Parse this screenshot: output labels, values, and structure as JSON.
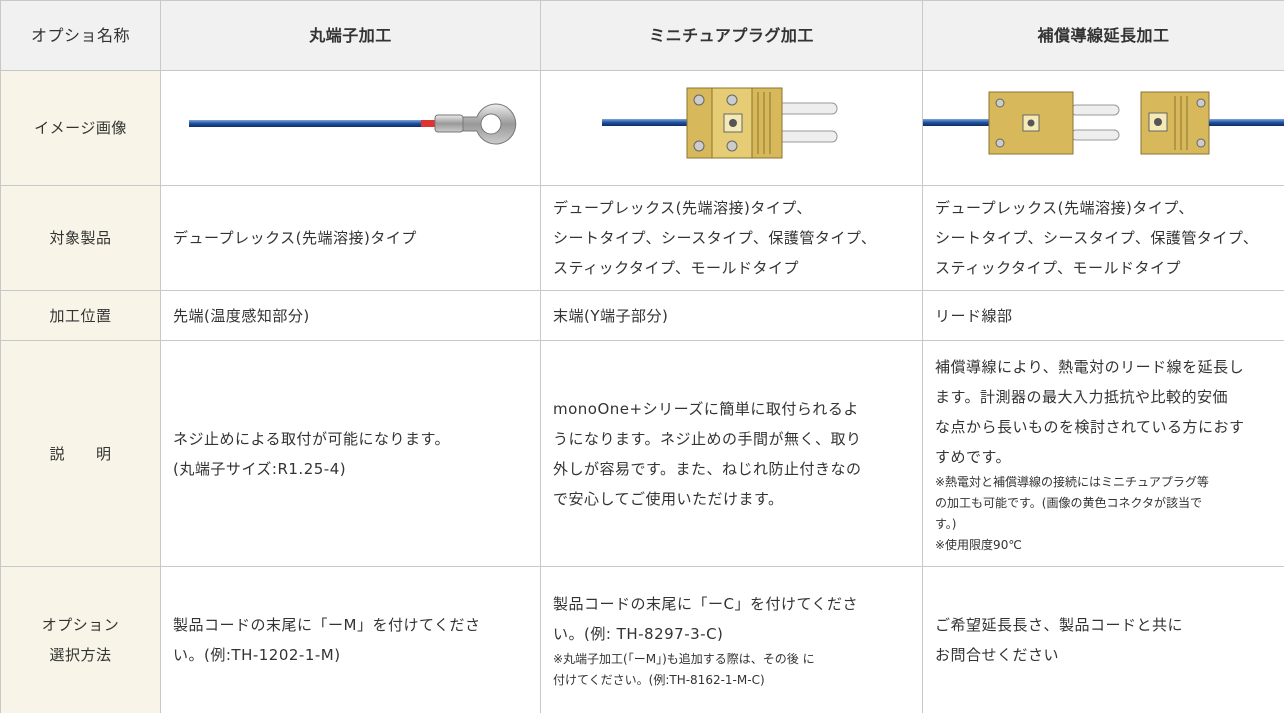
{
  "table": {
    "header": [
      "オプショ名称",
      "丸端子加工",
      "ミニチュアプラグ加工",
      "補償導線延長加工"
    ],
    "rows": [
      {
        "label": [
          "イメージ画像"
        ]
      },
      {
        "label": [
          "対象製品"
        ],
        "cells": [
          {
            "lines": [
              "デュープレックス(先端溶接)タイプ"
            ]
          },
          {
            "lines": [
              "デュープレックス(先端溶接)タイプ、",
              "シートタイプ、シースタイプ、保護管タイプ、",
              "スティックタイプ、モールドタイプ"
            ]
          },
          {
            "lines": [
              "デュープレックス(先端溶接)タイプ、",
              "シートタイプ、シースタイプ、保護管タイプ、",
              "スティックタイプ、モールドタイプ"
            ]
          }
        ]
      },
      {
        "label": [
          "加工位置"
        ],
        "cells": [
          {
            "lines": [
              "先端(温度感知部分)"
            ]
          },
          {
            "lines": [
              "末端(Y端子部分)"
            ]
          },
          {
            "lines": [
              "リード線部"
            ]
          }
        ]
      },
      {
        "label": [
          "説　　明"
        ],
        "cells": [
          {
            "lines": [
              "ネジ止めによる取付が可能になります。",
              "(丸端子サイズ:R1.25-4)"
            ]
          },
          {
            "lines": [
              "monoOne+シリーズに簡単に取付られるよ",
              "うになります。ネジ止めの手間が無く、取り",
              "外しが容易です。また、ねじれ防止付きなの",
              "で安心してご使用いただけます。"
            ]
          },
          {
            "lines": [
              "補償導線により、熱電対のリード線を延長し",
              "ます。計測器の最大入力抵抗や比較的安価",
              "な点から長いものを検討されている方におす",
              "すめです。"
            ],
            "notes": [
              "※熱電対と補償導線の接続にはミニチュアプラグ等",
              "の加工も可能です。(画像の黄色コネクタが該当で",
              "す。)",
              "※使用限度90℃"
            ]
          }
        ]
      },
      {
        "label": [
          "オプション",
          "選択方法"
        ],
        "cells": [
          {
            "lines": [
              "製品コードの末尾に「ーM」を付けてくださ",
              "い。(例:TH-1202-1-M)"
            ]
          },
          {
            "lines": [
              "製品コードの末尾に「ーC」を付けてくださ",
              "い。(例: TH-8297-3-C)"
            ],
            "notes": [
              "※丸端子加工(「ーM」)も追加する際は、その後 に",
              "付けてください。(例:TH-8162-1-M-C)"
            ]
          },
          {
            "lines": [
              "ご希望延長長さ、製品コードと共に",
              "お問合せください"
            ]
          }
        ]
      }
    ]
  }
}
